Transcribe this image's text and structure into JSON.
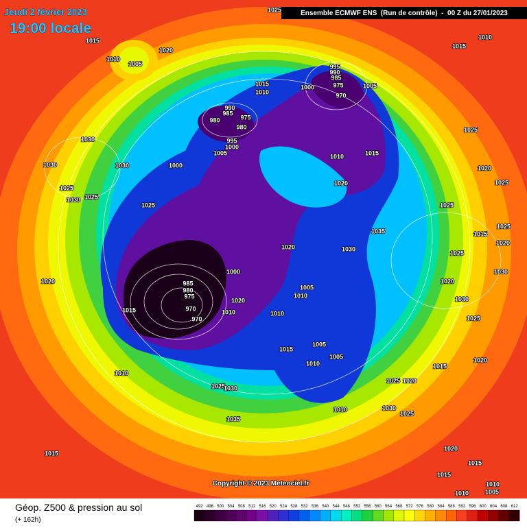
{
  "header": {
    "date": "Jeudi 2 février 2023",
    "time": "19:00 locale",
    "model": "Ensemble ECMWF ENS  (Run de contrôle)  -  00 Z du 27/01/2023"
  },
  "map": {
    "copyright": "Copyright © 2023 Meteociel.fr",
    "pressure_labels": [
      "1025",
      "1015",
      "1010",
      "1005",
      "1020",
      "1015",
      "1010",
      "1000",
      "995",
      "990",
      "985",
      "975",
      "970",
      "1005",
      "990",
      "985",
      "975",
      "980",
      "980",
      "995",
      "1000",
      "1005",
      "1000",
      "1010",
      "1015",
      "1020",
      "1015",
      "1010",
      "1025",
      "1020",
      "1025",
      "1030",
      "1030",
      "1030",
      "1025",
      "1030",
      "1025",
      "1025",
      "1035",
      "1025",
      "1020",
      "1030",
      "1025",
      "1015",
      "1000",
      "985",
      "980",
      "975",
      "970",
      "970",
      "1020",
      "1010",
      "1015",
      "1005",
      "1010",
      "1010",
      "1020",
      "1015",
      "1005",
      "1010",
      "1005",
      "1015",
      "1020",
      "1010",
      "1025",
      "1030",
      "1025",
      "1020",
      "1035",
      "1030",
      "1025",
      "1010",
      "1015",
      "1020",
      "1015",
      "1015",
      "1010",
      "1005",
      "1010",
      "1025",
      "1020",
      "1030",
      "1025",
      "1030",
      "1020"
    ]
  },
  "footer": {
    "title": "Géop. Z500 & pression au sol",
    "subtitle": "(+ 162h)",
    "scale": {
      "values": [
        492,
        496,
        500,
        504,
        508,
        512,
        516,
        520,
        524,
        528,
        532,
        536,
        540,
        544,
        548,
        552,
        556,
        560,
        564,
        568,
        572,
        576,
        580,
        584,
        588,
        592,
        596,
        600,
        604,
        608,
        612
      ],
      "colors": [
        "#1a0010",
        "#2a0028",
        "#3c0040",
        "#4e0058",
        "#600070",
        "#700088",
        "#7a10a8",
        "#5020c0",
        "#3030d0",
        "#1040e0",
        "#0060f0",
        "#0088ff",
        "#00b0ff",
        "#00d8f0",
        "#00f0c0",
        "#00e080",
        "#20d040",
        "#60dc20",
        "#a0e800",
        "#e0f800",
        "#ffff00",
        "#ffd800",
        "#ffb000",
        "#ff8c00",
        "#ff6400",
        "#f84020",
        "#e02010",
        "#c00000",
        "#900000",
        "#600000",
        "#300000"
      ]
    }
  }
}
